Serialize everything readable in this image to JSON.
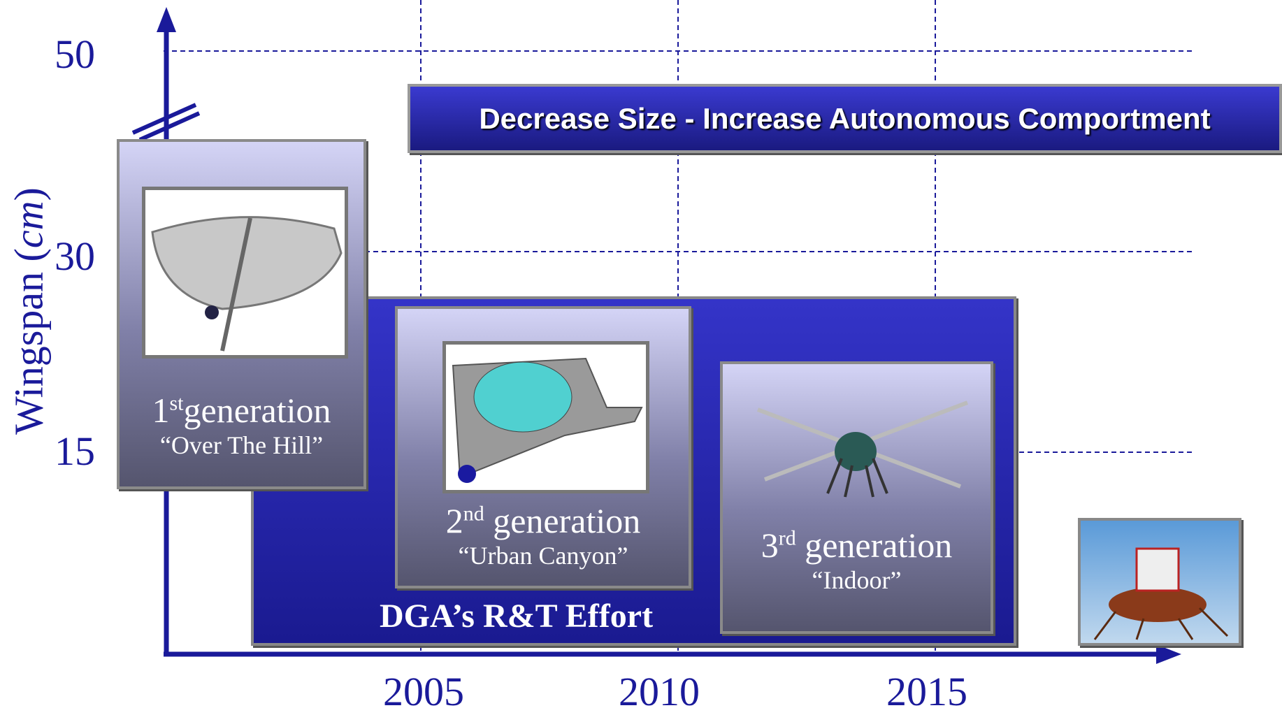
{
  "axis": {
    "y_label": {
      "text": "Wingspan (",
      "unit": "cm",
      "close": ")"
    },
    "y_ticks": [
      "50",
      "30",
      "15"
    ],
    "x_ticks": [
      "2005",
      "2010",
      "2015"
    ]
  },
  "banner": "Decrease Size - Increase Autonomous Comportment",
  "effort": "DGA’s R&T Effort",
  "generations": [
    {
      "ordinal": "1",
      "suffix": "st",
      "label": "generation",
      "name": "“Over The Hill”"
    },
    {
      "ordinal": "2",
      "suffix": "nd",
      "label": " generation",
      "name": "“Urban Canyon”"
    },
    {
      "ordinal": "3",
      "suffix": "rd",
      "label": " generation",
      "name": "“Indoor”"
    }
  ]
}
